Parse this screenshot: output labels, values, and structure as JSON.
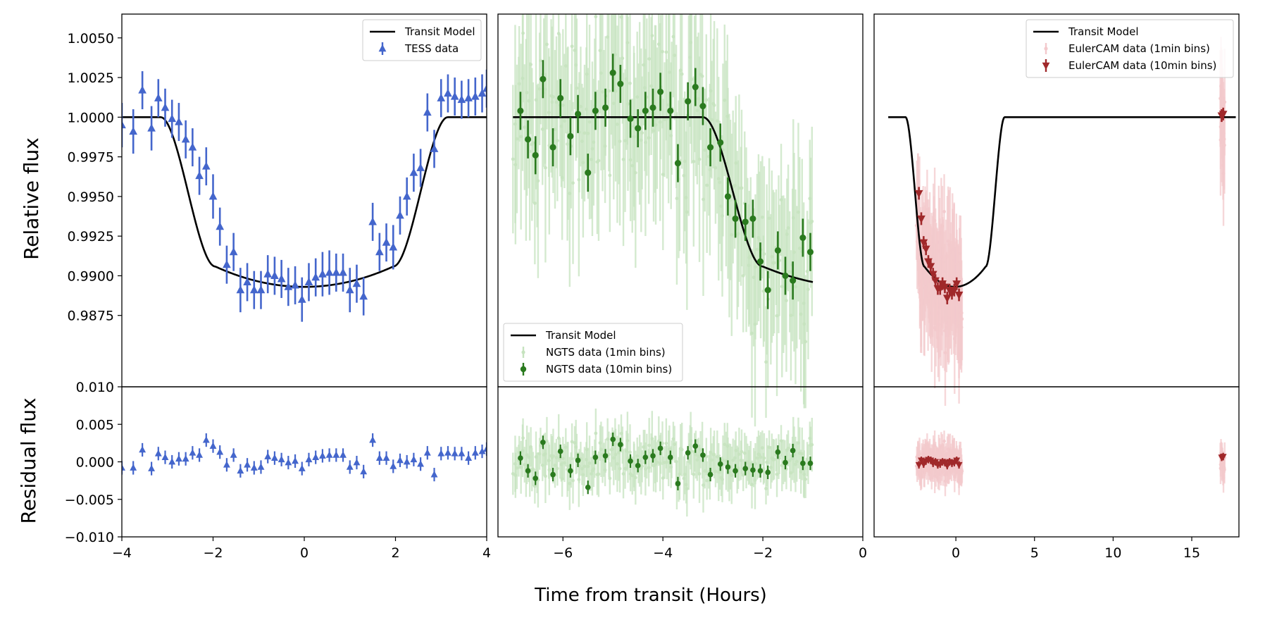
{
  "colors": {
    "tess": "#4466cc",
    "ngts": "#2a7a1e",
    "ngts_light": "#c6e3bf",
    "euler": "#a0282a",
    "euler_light": "#f3c9cc",
    "model": "#000000"
  },
  "axes": {
    "xlabel": "Time from transit (Hours)",
    "ylabel_top": "Relative flux",
    "ylabel_bottom": "Residual flux",
    "top_ylim": [
      0.983,
      1.0065
    ],
    "bottom_ylim": [
      -0.01,
      0.01
    ],
    "top_yticks": [
      "0.9875",
      "0.9900",
      "0.9925",
      "0.9950",
      "0.9975",
      "1.0000",
      "1.0025",
      "1.0050"
    ],
    "bottom_yticks": [
      "-0.010",
      "-0.005",
      "0.000",
      "0.005",
      "0.010"
    ]
  },
  "chart_data": [
    {
      "type": "scatter",
      "panel": "TESS",
      "xlim": [
        -4,
        4
      ],
      "xticks": [
        "-4",
        "-2",
        "0",
        "2",
        "4"
      ],
      "legend": {
        "placement": "top-right",
        "entries": [
          "Transit Model",
          "TESS data"
        ]
      },
      "model": {
        "name": "Transit Model",
        "duration_hours": 6.3,
        "ingress_hours": 1.2,
        "depth": 0.0107
      },
      "series": [
        {
          "name": "TESS data",
          "marker": "triangle-up",
          "x": [
            -4.0,
            -3.75,
            -3.55,
            -3.35,
            -3.2,
            -3.05,
            -2.9,
            -2.75,
            -2.6,
            -2.45,
            -2.3,
            -2.15,
            -2.0,
            -1.85,
            -1.7,
            -1.55,
            -1.4,
            -1.25,
            -1.1,
            -0.95,
            -0.8,
            -0.65,
            -0.5,
            -0.35,
            -0.2,
            -0.05,
            0.1,
            0.25,
            0.4,
            0.55,
            0.7,
            0.85,
            1.0,
            1.15,
            1.3,
            1.5,
            1.65,
            1.8,
            1.95,
            2.1,
            2.25,
            2.4,
            2.55,
            2.7,
            2.85,
            3.0,
            3.15,
            3.3,
            3.45,
            3.6,
            3.75,
            3.9,
            4.0
          ],
          "y": [
            0.9995,
            0.9991,
            1.0017,
            0.9993,
            1.0012,
            1.0006,
            0.9999,
            0.9997,
            0.9986,
            0.9981,
            0.9963,
            0.9969,
            0.995,
            0.9931,
            0.9907,
            0.9915,
            0.9891,
            0.9896,
            0.9891,
            0.9891,
            0.9901,
            0.99,
            0.9898,
            0.9893,
            0.9894,
            0.9885,
            0.9896,
            0.9899,
            0.9901,
            0.9902,
            0.9902,
            0.9902,
            0.9891,
            0.9895,
            0.9887,
            0.9934,
            0.9915,
            0.9921,
            0.9918,
            0.9938,
            0.995,
            0.9965,
            0.9968,
            1.0003,
            0.998,
            1.0012,
            1.0015,
            1.0013,
            1.0011,
            1.0012,
            1.0013,
            1.0015,
            1.0018
          ],
          "err": [
            0.0014,
            0.0014,
            0.0012,
            0.0014,
            0.0012,
            0.0012,
            0.0012,
            0.0012,
            0.0012,
            0.0012,
            0.0012,
            0.0012,
            0.0014,
            0.0012,
            0.0012,
            0.0012,
            0.0014,
            0.0012,
            0.0012,
            0.0012,
            0.0012,
            0.0012,
            0.0012,
            0.0012,
            0.0012,
            0.0014,
            0.0012,
            0.0012,
            0.0014,
            0.0014,
            0.0012,
            0.0012,
            0.0014,
            0.0012,
            0.0012,
            0.0012,
            0.0012,
            0.0012,
            0.0014,
            0.0012,
            0.0012,
            0.0012,
            0.0012,
            0.0012,
            0.0012,
            0.0012,
            0.0012,
            0.0012,
            0.0012,
            0.0012,
            0.0012,
            0.0012,
            0.0012
          ]
        }
      ],
      "residuals": [
        -0.0008,
        -0.0008,
        0.0016,
        -0.0009,
        0.0011,
        0.0006,
        0.0,
        0.0004,
        0.0004,
        0.0012,
        0.0009,
        0.0029,
        0.0021,
        0.0013,
        -0.0004,
        0.0009,
        -0.0012,
        -0.0004,
        -0.0008,
        -0.0007,
        0.0007,
        0.0005,
        0.0003,
        -0.0001,
        0.0001,
        -0.0009,
        0.0003,
        0.0006,
        0.0008,
        0.0009,
        0.0009,
        0.0009,
        -0.0007,
        -0.0001,
        -0.0013,
        0.0029,
        0.0005,
        0.0005,
        -0.0006,
        0.0002,
        0.0,
        0.0003,
        -0.0003,
        0.0012,
        -0.0017,
        0.0011,
        0.0012,
        0.0011,
        0.0011,
        0.0005,
        0.0012,
        0.0014,
        0.0017
      ]
    },
    {
      "type": "scatter",
      "panel": "NGTS",
      "xlim": [
        -7.3,
        0
      ],
      "xticks": [
        "-6",
        "-4",
        "-2",
        "0"
      ],
      "legend": {
        "placement": "bottom-left",
        "entries": [
          "Transit Model",
          "NGTS data (1min bins)",
          "NGTS data (10min bins)"
        ]
      },
      "model": {
        "name": "Transit Model",
        "mid_hours": -0.05,
        "duration_hours": 6.3,
        "ingress_hours": 1.2,
        "depth": 0.0107,
        "x_range": [
          -7.0,
          -1.0
        ]
      },
      "series": [
        {
          "name": "NGTS data (1min bins)",
          "marker": "circle",
          "x_range": [
            -7.0,
            -1.0
          ],
          "scatter": 0.005
        },
        {
          "name": "NGTS data (10min bins)",
          "marker": "circle",
          "x": [
            -6.85,
            -6.7,
            -6.55,
            -6.4,
            -6.2,
            -6.05,
            -5.85,
            -5.7,
            -5.5,
            -5.35,
            -5.15,
            -5.0,
            -4.85,
            -4.65,
            -4.5,
            -4.35,
            -4.2,
            -4.05,
            -3.85,
            -3.7,
            -3.5,
            -3.35,
            -3.2,
            -3.05,
            -2.85,
            -2.7,
            -2.55,
            -2.35,
            -2.2,
            -2.05,
            -1.9,
            -1.7,
            -1.55,
            -1.4,
            -1.2,
            -1.05
          ],
          "y": [
            1.0004,
            0.9986,
            0.9976,
            1.0024,
            0.9981,
            1.0012,
            0.9988,
            1.0002,
            0.9965,
            1.0004,
            1.0006,
            1.0028,
            1.0021,
            0.9999,
            0.9993,
            1.0004,
            1.0006,
            1.0016,
            1.0004,
            0.9971,
            1.001,
            1.0019,
            1.0007,
            0.9981,
            0.9984,
            0.995,
            0.9936,
            0.9934,
            0.9936,
            0.9909,
            0.9891,
            0.9916,
            0.99,
            0.9897,
            0.9924,
            0.9915
          ],
          "err": [
            0.0012,
            0.0012,
            0.0012,
            0.0012,
            0.0012,
            0.0012,
            0.0012,
            0.0012,
            0.0012,
            0.0012,
            0.0012,
            0.0012,
            0.0012,
            0.0012,
            0.0012,
            0.0012,
            0.0012,
            0.0012,
            0.0012,
            0.0012,
            0.0012,
            0.0012,
            0.0012,
            0.0012,
            0.0012,
            0.0012,
            0.0012,
            0.0012,
            0.0012,
            0.0012,
            0.0012,
            0.0012,
            0.0012,
            0.0012,
            0.0012,
            0.0012
          ]
        }
      ],
      "residuals": [
        0.0005,
        -0.0012,
        -0.0022,
        0.0026,
        -0.0017,
        0.0014,
        -0.0012,
        0.0002,
        -0.0034,
        0.0006,
        0.0008,
        0.003,
        0.0023,
        0.0001,
        -0.0005,
        0.0006,
        0.0008,
        0.0018,
        0.0006,
        -0.0029,
        0.0012,
        0.0021,
        0.0009,
        -0.0017,
        -0.0003,
        -0.0007,
        -0.0012,
        -0.0009,
        -0.0011,
        -0.0012,
        -0.0014,
        0.0013,
        -0.0001,
        0.0015,
        -0.0002,
        -0.0002
      ]
    },
    {
      "type": "scatter",
      "panel": "EulerCAM",
      "xlim": [
        -5.2,
        18.0
      ],
      "xticks": [
        "0",
        "5",
        "10",
        "15"
      ],
      "legend": {
        "placement": "top-right",
        "entries": [
          "Transit Model",
          "EulerCAM data (1min bins)",
          "EulerCAM data (10min bins)"
        ]
      },
      "model": {
        "name": "Transit Model",
        "mid_hours": -0.05,
        "duration_hours": 6.3,
        "ingress_hours": 1.2,
        "depth": 0.0107,
        "x_range": [
          -4.3,
          17.8
        ]
      },
      "series": [
        {
          "name": "EulerCAM data (1min bins)",
          "marker": "circle",
          "x_ranges": [
            [
              -2.5,
              0.4
            ],
            [
              16.8,
              17.1
            ]
          ],
          "scatter": 0.003
        },
        {
          "name": "EulerCAM data (10min bins)",
          "marker": "triangle-down",
          "x": [
            -2.35,
            -2.2,
            -2.05,
            -1.9,
            -1.75,
            -1.6,
            -1.45,
            -1.3,
            -1.15,
            -1.0,
            -0.85,
            -0.7,
            -0.55,
            -0.4,
            -0.25,
            -0.1,
            0.05,
            0.2,
            16.9,
            17.0
          ],
          "y": [
            0.9952,
            0.9936,
            0.9921,
            0.9917,
            0.9909,
            0.9906,
            0.9901,
            0.9897,
            0.9892,
            0.9892,
            0.9895,
            0.9893,
            0.9886,
            0.9891,
            0.9889,
            0.9891,
            0.9895,
            0.9888,
            1.0001,
            1.0002
          ],
          "err": [
            0.0004,
            0.0004,
            0.0004,
            0.0004,
            0.0004,
            0.0004,
            0.0004,
            0.0004,
            0.0004,
            0.0004,
            0.0004,
            0.0004,
            0.0004,
            0.0004,
            0.0004,
            0.0004,
            0.0004,
            0.0004,
            0.0004,
            0.0004
          ]
        }
      ],
      "residuals": [
        -0.0004,
        0.0002,
        -0.0003,
        0.0001,
        0.0003,
        0.0002,
        -0.0002,
        0.0,
        -0.0004,
        -0.0003,
        0.0,
        -0.0001,
        -0.0005,
        0.0,
        -0.0002,
        -0.0001,
        0.0002,
        -0.0004,
        0.0006,
        0.0007
      ]
    }
  ]
}
